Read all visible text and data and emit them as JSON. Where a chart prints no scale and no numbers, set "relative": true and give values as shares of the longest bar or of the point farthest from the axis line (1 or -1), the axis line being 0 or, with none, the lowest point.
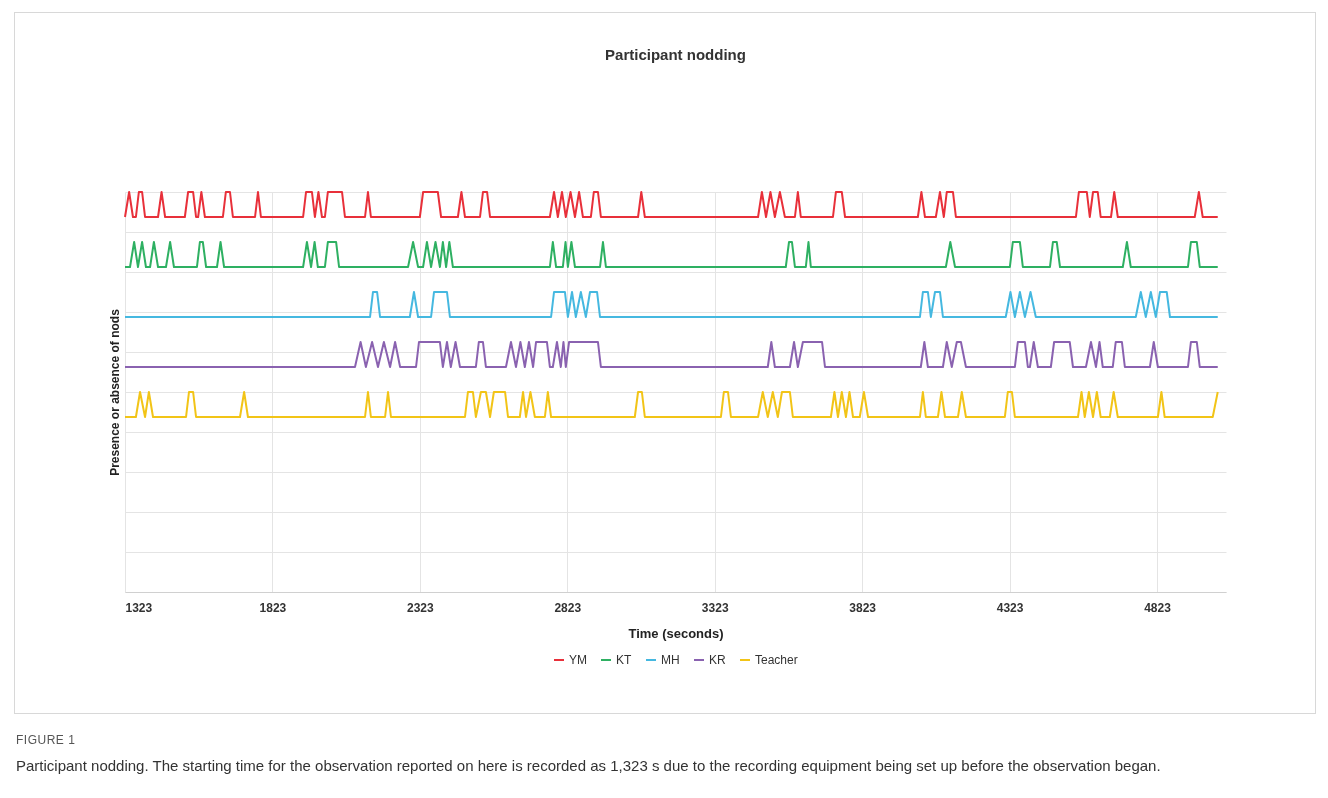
{
  "chart_data": {
    "type": "line",
    "title": "Participant nodding",
    "xlabel": "Time (seconds)",
    "ylabel": "Presence or absence of nods",
    "relative": true,
    "xlim": [
      1323,
      5057
    ],
    "xticks": [
      1323,
      1823,
      2323,
      2823,
      3323,
      3823,
      4323,
      4823
    ],
    "grid": true,
    "legend": "bottom",
    "marker": "none",
    "annotations": [
      "FIGURE 1",
      "Participant nodding. The starting time for the observation reported on here is recorded as 1,323 s due to the recording equipment being set up before the observation began."
    ],
    "series": [
      {
        "name": "YM",
        "color": "#e8303a",
        "x": [
          1323,
          1337,
          1350,
          1360,
          1370,
          1381,
          1391,
          1435,
          1447,
          1459,
          1526,
          1537,
          1554,
          1564,
          1571,
          1582,
          1594,
          1655,
          1665,
          1679,
          1689,
          1764,
          1774,
          1784,
          1927,
          1937,
          1957,
          1967,
          1979,
          1991,
          2001,
          2011,
          2059,
          2069,
          2137,
          2147,
          2157,
          2323,
          2334,
          2384,
          2395,
          2452,
          2464,
          2476,
          2527,
          2537,
          2551,
          2561,
          2764,
          2778,
          2791,
          2805,
          2818,
          2834,
          2849,
          2863,
          2876,
          2903,
          2913,
          2927,
          2937,
          3063,
          3074,
          3086,
          3470,
          3483,
          3497,
          3512,
          3527,
          3544,
          3561,
          3595,
          3605,
          3615,
          3724,
          3734,
          3754,
          3765,
          4012,
          4024,
          4036,
          4073,
          4087,
          4100,
          4110,
          4131,
          4141,
          4548,
          4558,
          4585,
          4595,
          4606,
          4622,
          4632,
          4667,
          4678,
          4690,
          4951,
          4965,
          4978,
          5029
        ],
        "values": [
          0.9375,
          1,
          0.9375,
          0.9375,
          1,
          1,
          0.9375,
          0.9375,
          1,
          0.9375,
          0.9375,
          1,
          1,
          0.9375,
          0.9375,
          1,
          0.9375,
          0.9375,
          1,
          1,
          0.9375,
          0.9375,
          1,
          0.9375,
          0.9375,
          1,
          1,
          0.9375,
          1,
          0.9375,
          0.9375,
          1,
          1,
          0.9375,
          0.9375,
          1,
          0.9375,
          0.9375,
          1,
          1,
          0.9375,
          0.9375,
          1,
          0.9375,
          0.9375,
          1,
          1,
          0.9375,
          0.9375,
          1,
          0.9375,
          1,
          0.9375,
          1,
          0.9375,
          1,
          0.9375,
          0.9375,
          1,
          1,
          0.9375,
          0.9375,
          1,
          0.9375,
          0.9375,
          1,
          0.9375,
          1,
          0.9375,
          1,
          0.9375,
          0.9375,
          1,
          0.9375,
          0.9375,
          1,
          1,
          0.9375,
          0.9375,
          1,
          0.9375,
          0.9375,
          1,
          0.9375,
          1,
          1,
          0.9375,
          0.9375,
          1,
          1,
          0.9375,
          1,
          1,
          0.9375,
          0.9375,
          1,
          0.9375,
          0.9375,
          1,
          0.9375,
          0.9375
        ]
      },
      {
        "name": "KT",
        "color": "#2eb062",
        "x": [
          1323,
          1340,
          1354,
          1367,
          1381,
          1394,
          1408,
          1421,
          1435,
          1462,
          1476,
          1489,
          1567,
          1577,
          1587,
          1598,
          1635,
          1647,
          1659,
          1927,
          1940,
          1954,
          1966,
          1977,
          2001,
          2011,
          2039,
          2049,
          2283,
          2300,
          2317,
          2334,
          2347,
          2361,
          2376,
          2391,
          2401,
          2412,
          2423,
          2435,
          2764,
          2774,
          2785,
          2808,
          2817,
          2825,
          2837,
          2849,
          2934,
          2944,
          2954,
          3564,
          3575,
          3585,
          3595,
          3632,
          3641,
          3649,
          4107,
          4122,
          4138,
          4324,
          4334,
          4358,
          4368,
          4460,
          4470,
          4483,
          4494,
          4707,
          4721,
          4734,
          4928,
          4938,
          4958,
          4968,
          5029
        ],
        "values": [
          0.8125,
          0.8125,
          0.875,
          0.8125,
          0.875,
          0.8125,
          0.8125,
          0.875,
          0.8125,
          0.8125,
          0.875,
          0.8125,
          0.8125,
          0.875,
          0.875,
          0.8125,
          0.8125,
          0.875,
          0.8125,
          0.8125,
          0.875,
          0.8125,
          0.875,
          0.8125,
          0.8125,
          0.875,
          0.875,
          0.8125,
          0.8125,
          0.875,
          0.8125,
          0.8125,
          0.875,
          0.8125,
          0.875,
          0.8125,
          0.875,
          0.8125,
          0.875,
          0.8125,
          0.8125,
          0.875,
          0.8125,
          0.8125,
          0.875,
          0.8125,
          0.875,
          0.8125,
          0.8125,
          0.875,
          0.8125,
          0.8125,
          0.875,
          0.875,
          0.8125,
          0.8125,
          0.875,
          0.8125,
          0.8125,
          0.875,
          0.8125,
          0.8125,
          0.875,
          0.875,
          0.8125,
          0.8125,
          0.875,
          0.875,
          0.8125,
          0.8125,
          0.875,
          0.8125,
          0.8125,
          0.875,
          0.875,
          0.8125,
          0.8125
        ]
      },
      {
        "name": "MH",
        "color": "#45b8e0",
        "x": [
          1323,
          2154,
          2164,
          2178,
          2188,
          2289,
          2303,
          2317,
          2361,
          2371,
          2415,
          2425,
          2768,
          2778,
          2815,
          2825,
          2839,
          2852,
          2869,
          2886,
          2900,
          2924,
          2934,
          4019,
          4029,
          4046,
          4056,
          4070,
          4087,
          4097,
          4310,
          4326,
          4341,
          4358,
          4375,
          4394,
          4412,
          4751,
          4768,
          4785,
          4802,
          4819,
          4833,
          4856,
          4867,
          5029
        ],
        "values": [
          0.6875,
          0.6875,
          0.75,
          0.75,
          0.6875,
          0.6875,
          0.75,
          0.6875,
          0.6875,
          0.75,
          0.75,
          0.6875,
          0.6875,
          0.75,
          0.75,
          0.6875,
          0.75,
          0.6875,
          0.75,
          0.6875,
          0.75,
          0.75,
          0.6875,
          0.6875,
          0.75,
          0.75,
          0.6875,
          0.75,
          0.75,
          0.6875,
          0.6875,
          0.75,
          0.6875,
          0.75,
          0.6875,
          0.75,
          0.6875,
          0.6875,
          0.75,
          0.6875,
          0.75,
          0.6875,
          0.75,
          0.75,
          0.6875,
          0.6875
        ]
      },
      {
        "name": "KR",
        "color": "#8a62b0",
        "x": [
          1323,
          2103,
          2122,
          2140,
          2161,
          2181,
          2201,
          2222,
          2239,
          2256,
          2310,
          2320,
          2391,
          2401,
          2415,
          2428,
          2444,
          2459,
          2513,
          2523,
          2537,
          2547,
          2615,
          2632,
          2649,
          2664,
          2679,
          2693,
          2707,
          2717,
          2754,
          2764,
          2774,
          2788,
          2801,
          2810,
          2818,
          2829,
          2927,
          2937,
          3503,
          3515,
          3527,
          3578,
          3592,
          3605,
          3622,
          3687,
          3697,
          4022,
          4034,
          4046,
          4097,
          4110,
          4127,
          4144,
          4158,
          4175,
          4341,
          4351,
          4375,
          4385,
          4392,
          4405,
          4419,
          4463,
          4474,
          4527,
          4538,
          4582,
          4599,
          4616,
          4628,
          4639,
          4673,
          4683,
          4704,
          4714,
          4799,
          4812,
          4826,
          4928,
          4938,
          4958,
          4968,
          5029
        ],
        "values": [
          0.5625,
          0.5625,
          0.625,
          0.5625,
          0.625,
          0.5625,
          0.625,
          0.5625,
          0.625,
          0.5625,
          0.5625,
          0.625,
          0.625,
          0.5625,
          0.625,
          0.5625,
          0.625,
          0.5625,
          0.5625,
          0.625,
          0.625,
          0.5625,
          0.5625,
          0.625,
          0.5625,
          0.625,
          0.5625,
          0.625,
          0.5625,
          0.625,
          0.625,
          0.5625,
          0.5625,
          0.625,
          0.5625,
          0.625,
          0.5625,
          0.625,
          0.625,
          0.5625,
          0.5625,
          0.625,
          0.5625,
          0.5625,
          0.625,
          0.5625,
          0.625,
          0.625,
          0.5625,
          0.5625,
          0.625,
          0.5625,
          0.5625,
          0.625,
          0.5625,
          0.625,
          0.625,
          0.5625,
          0.5625,
          0.625,
          0.625,
          0.5625,
          0.5625,
          0.625,
          0.5625,
          0.5625,
          0.625,
          0.625,
          0.5625,
          0.5625,
          0.625,
          0.5625,
          0.625,
          0.5625,
          0.5625,
          0.625,
          0.625,
          0.5625,
          0.5625,
          0.625,
          0.5625,
          0.5625,
          0.625,
          0.625,
          0.5625,
          0.5625
        ]
      },
      {
        "name": "Teacher",
        "color": "#f2c417",
        "x": [
          1323,
          1360,
          1374,
          1391,
          1404,
          1418,
          1530,
          1540,
          1554,
          1564,
          1713,
          1727,
          1740,
          2137,
          2147,
          2157,
          2205,
          2215,
          2225,
          2476,
          2486,
          2503,
          2513,
          2530,
          2547,
          2561,
          2574,
          2612,
          2622,
          2662,
          2673,
          2683,
          2698,
          2713,
          2747,
          2757,
          2768,
          3052,
          3063,
          3076,
          3086,
          3344,
          3354,
          3368,
          3378,
          3470,
          3486,
          3503,
          3520,
          3537,
          3551,
          3578,
          3588,
          3717,
          3729,
          3741,
          3754,
          3768,
          3780,
          3792,
          3815,
          3829,
          3843,
          4019,
          4029,
          4039,
          4080,
          4092,
          4104,
          4148,
          4161,
          4175,
          4307,
          4317,
          4331,
          4341,
          4555,
          4567,
          4578,
          4592,
          4606,
          4619,
          4632,
          4663,
          4676,
          4690,
          4826,
          4838,
          4849,
          5012,
          5029
        ],
        "values": [
          0.4375,
          0.4375,
          0.5,
          0.4375,
          0.5,
          0.4375,
          0.4375,
          0.5,
          0.5,
          0.4375,
          0.4375,
          0.5,
          0.4375,
          0.4375,
          0.5,
          0.4375,
          0.4375,
          0.5,
          0.4375,
          0.4375,
          0.5,
          0.5,
          0.4375,
          0.5,
          0.5,
          0.4375,
          0.5,
          0.5,
          0.4375,
          0.4375,
          0.5,
          0.4375,
          0.5,
          0.4375,
          0.4375,
          0.5,
          0.4375,
          0.4375,
          0.5,
          0.5,
          0.4375,
          0.4375,
          0.5,
          0.5,
          0.4375,
          0.4375,
          0.5,
          0.4375,
          0.5,
          0.4375,
          0.5,
          0.5,
          0.4375,
          0.4375,
          0.5,
          0.4375,
          0.5,
          0.4375,
          0.5,
          0.4375,
          0.4375,
          0.5,
          0.4375,
          0.4375,
          0.5,
          0.4375,
          0.4375,
          0.5,
          0.4375,
          0.4375,
          0.5,
          0.4375,
          0.4375,
          0.5,
          0.5,
          0.4375,
          0.4375,
          0.5,
          0.4375,
          0.5,
          0.4375,
          0.5,
          0.4375,
          0.4375,
          0.5,
          0.4375,
          0.4375,
          0.5,
          0.4375,
          0.4375,
          0.5
        ]
      }
    ]
  }
}
